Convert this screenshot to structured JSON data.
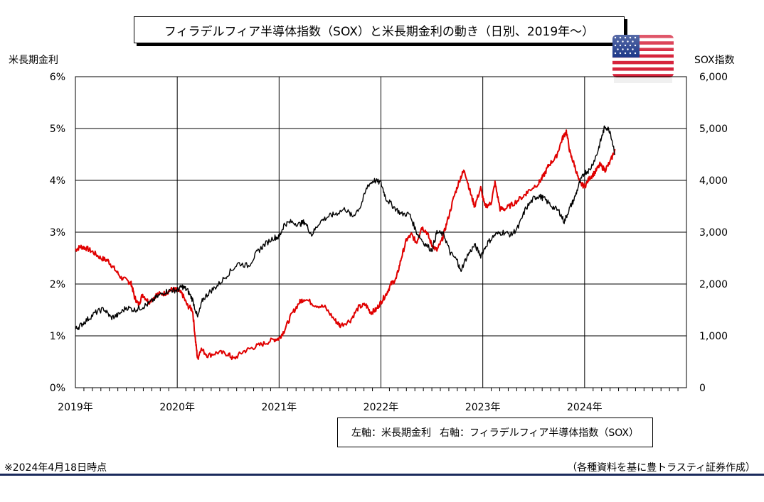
{
  "title": "フィラデルフィア半導体指数（SOX）と米長期金利の動き（日別、2019年～）",
  "left_axis_title": "米長期金利",
  "right_axis_title": "SOX指数",
  "legend": {
    "left": "左軸：米長期金利",
    "right": "右軸：フィラデルフィア半導体指数（SOX）"
  },
  "footnote_left": "※2024年4月18日時点",
  "footnote_right": "（各種資料を基に豊トラスティ証券作成）",
  "flag_icon": "us-flag-icon",
  "colors": {
    "yield": "#e00000",
    "sox": "#000000",
    "footer_rule": "#1a2a5c"
  },
  "chart_data": {
    "type": "line",
    "title": "フィラデルフィア半導体指数（SOX）と米長期金利の動き（日別、2019年～）",
    "x_tick_labels": [
      "2019年",
      "2020年",
      "2021年",
      "2022年",
      "2023年",
      "2024年"
    ],
    "xlim": [
      2019.0,
      2025.0
    ],
    "y_left": {
      "label": "米長期金利",
      "ylim": [
        0,
        6
      ],
      "ticks": [
        0,
        1,
        2,
        3,
        4,
        5,
        6
      ],
      "tick_labels": [
        "0%",
        "1%",
        "2%",
        "3%",
        "4%",
        "5%",
        "6%"
      ]
    },
    "y_right": {
      "label": "SOX指数",
      "ylim": [
        0,
        6000
      ],
      "ticks": [
        0,
        1000,
        2000,
        3000,
        4000,
        5000,
        6000
      ],
      "tick_labels": [
        "0",
        "1,000",
        "2,000",
        "3,000",
        "4,000",
        "5,000",
        "6,000"
      ]
    },
    "grid": true,
    "series": [
      {
        "name": "米長期金利",
        "axis": "left",
        "color": "#e00000",
        "points": [
          [
            2019.0,
            2.66
          ],
          [
            2019.05,
            2.72
          ],
          [
            2019.1,
            2.7
          ],
          [
            2019.17,
            2.62
          ],
          [
            2019.25,
            2.5
          ],
          [
            2019.32,
            2.45
          ],
          [
            2019.38,
            2.3
          ],
          [
            2019.45,
            2.12
          ],
          [
            2019.52,
            2.05
          ],
          [
            2019.55,
            2.0
          ],
          [
            2019.58,
            1.75
          ],
          [
            2019.62,
            1.6
          ],
          [
            2019.66,
            1.8
          ],
          [
            2019.72,
            1.65
          ],
          [
            2019.8,
            1.8
          ],
          [
            2019.88,
            1.82
          ],
          [
            2019.95,
            1.9
          ],
          [
            2020.0,
            1.88
          ],
          [
            2020.05,
            1.8
          ],
          [
            2020.1,
            1.58
          ],
          [
            2020.15,
            1.5
          ],
          [
            2020.18,
            0.9
          ],
          [
            2020.2,
            0.55
          ],
          [
            2020.23,
            0.75
          ],
          [
            2020.3,
            0.62
          ],
          [
            2020.4,
            0.68
          ],
          [
            2020.5,
            0.65
          ],
          [
            2020.55,
            0.55
          ],
          [
            2020.65,
            0.7
          ],
          [
            2020.75,
            0.78
          ],
          [
            2020.85,
            0.85
          ],
          [
            2020.95,
            0.93
          ],
          [
            2021.0,
            0.95
          ],
          [
            2021.05,
            1.1
          ],
          [
            2021.12,
            1.4
          ],
          [
            2021.2,
            1.65
          ],
          [
            2021.25,
            1.72
          ],
          [
            2021.35,
            1.6
          ],
          [
            2021.45,
            1.55
          ],
          [
            2021.55,
            1.3
          ],
          [
            2021.6,
            1.2
          ],
          [
            2021.7,
            1.3
          ],
          [
            2021.78,
            1.55
          ],
          [
            2021.85,
            1.6
          ],
          [
            2021.9,
            1.45
          ],
          [
            2021.95,
            1.5
          ],
          [
            2022.0,
            1.65
          ],
          [
            2022.05,
            1.8
          ],
          [
            2022.1,
            2.0
          ],
          [
            2022.15,
            2.1
          ],
          [
            2022.2,
            2.5
          ],
          [
            2022.25,
            2.85
          ],
          [
            2022.3,
            2.95
          ],
          [
            2022.35,
            2.8
          ],
          [
            2022.4,
            3.1
          ],
          [
            2022.45,
            3.0
          ],
          [
            2022.5,
            2.75
          ],
          [
            2022.55,
            2.65
          ],
          [
            2022.6,
            2.85
          ],
          [
            2022.65,
            3.2
          ],
          [
            2022.72,
            3.7
          ],
          [
            2022.78,
            4.05
          ],
          [
            2022.82,
            4.2
          ],
          [
            2022.88,
            3.75
          ],
          [
            2022.92,
            3.5
          ],
          [
            2022.98,
            3.85
          ],
          [
            2023.02,
            3.5
          ],
          [
            2023.08,
            3.55
          ],
          [
            2023.12,
            3.95
          ],
          [
            2023.17,
            3.45
          ],
          [
            2023.22,
            3.45
          ],
          [
            2023.3,
            3.55
          ],
          [
            2023.4,
            3.7
          ],
          [
            2023.45,
            3.8
          ],
          [
            2023.55,
            3.95
          ],
          [
            2023.6,
            4.1
          ],
          [
            2023.65,
            4.3
          ],
          [
            2023.72,
            4.45
          ],
          [
            2023.78,
            4.8
          ],
          [
            2023.82,
            4.95
          ],
          [
            2023.86,
            4.5
          ],
          [
            2023.9,
            4.3
          ],
          [
            2023.95,
            3.95
          ],
          [
            2024.0,
            3.88
          ],
          [
            2024.05,
            4.05
          ],
          [
            2024.1,
            4.15
          ],
          [
            2024.15,
            4.3
          ],
          [
            2024.2,
            4.2
          ],
          [
            2024.25,
            4.35
          ],
          [
            2024.3,
            4.6
          ]
        ]
      },
      {
        "name": "フィラデルフィア半導体指数（SOX）",
        "axis": "right",
        "color": "#000000",
        "points": [
          [
            2019.0,
            1130
          ],
          [
            2019.05,
            1200
          ],
          [
            2019.12,
            1320
          ],
          [
            2019.2,
            1450
          ],
          [
            2019.28,
            1520
          ],
          [
            2019.35,
            1350
          ],
          [
            2019.42,
            1400
          ],
          [
            2019.5,
            1550
          ],
          [
            2019.58,
            1500
          ],
          [
            2019.65,
            1550
          ],
          [
            2019.72,
            1620
          ],
          [
            2019.8,
            1750
          ],
          [
            2019.88,
            1850
          ],
          [
            2019.95,
            1880
          ],
          [
            2020.0,
            1880
          ],
          [
            2020.05,
            1950
          ],
          [
            2020.1,
            1880
          ],
          [
            2020.15,
            1700
          ],
          [
            2020.2,
            1350
          ],
          [
            2020.25,
            1700
          ],
          [
            2020.32,
            1850
          ],
          [
            2020.4,
            1980
          ],
          [
            2020.5,
            2200
          ],
          [
            2020.6,
            2400
          ],
          [
            2020.7,
            2350
          ],
          [
            2020.78,
            2600
          ],
          [
            2020.85,
            2750
          ],
          [
            2020.95,
            2900
          ],
          [
            2021.0,
            2900
          ],
          [
            2021.05,
            3150
          ],
          [
            2021.12,
            3200
          ],
          [
            2021.2,
            3150
          ],
          [
            2021.25,
            3200
          ],
          [
            2021.32,
            2950
          ],
          [
            2021.4,
            3200
          ],
          [
            2021.48,
            3300
          ],
          [
            2021.55,
            3350
          ],
          [
            2021.65,
            3450
          ],
          [
            2021.72,
            3300
          ],
          [
            2021.8,
            3500
          ],
          [
            2021.87,
            3900
          ],
          [
            2021.93,
            4000
          ],
          [
            2022.0,
            3950
          ],
          [
            2022.05,
            3650
          ],
          [
            2022.12,
            3500
          ],
          [
            2022.2,
            3350
          ],
          [
            2022.28,
            3350
          ],
          [
            2022.35,
            3000
          ],
          [
            2022.42,
            2800
          ],
          [
            2022.5,
            2650
          ],
          [
            2022.55,
            3000
          ],
          [
            2022.62,
            2950
          ],
          [
            2022.68,
            2600
          ],
          [
            2022.75,
            2450
          ],
          [
            2022.78,
            2250
          ],
          [
            2022.85,
            2550
          ],
          [
            2022.92,
            2750
          ],
          [
            2022.98,
            2550
          ],
          [
            2023.05,
            2800
          ],
          [
            2023.12,
            2950
          ],
          [
            2023.2,
            3000
          ],
          [
            2023.28,
            2950
          ],
          [
            2023.35,
            3100
          ],
          [
            2023.42,
            3450
          ],
          [
            2023.5,
            3650
          ],
          [
            2023.55,
            3700
          ],
          [
            2023.6,
            3650
          ],
          [
            2023.68,
            3500
          ],
          [
            2023.75,
            3400
          ],
          [
            2023.8,
            3200
          ],
          [
            2023.85,
            3450
          ],
          [
            2023.9,
            3650
          ],
          [
            2023.95,
            3950
          ],
          [
            2024.0,
            4150
          ],
          [
            2024.05,
            4200
          ],
          [
            2024.12,
            4500
          ],
          [
            2024.17,
            4850
          ],
          [
            2024.2,
            5050
          ],
          [
            2024.25,
            4950
          ],
          [
            2024.3,
            4500
          ]
        ]
      }
    ]
  }
}
